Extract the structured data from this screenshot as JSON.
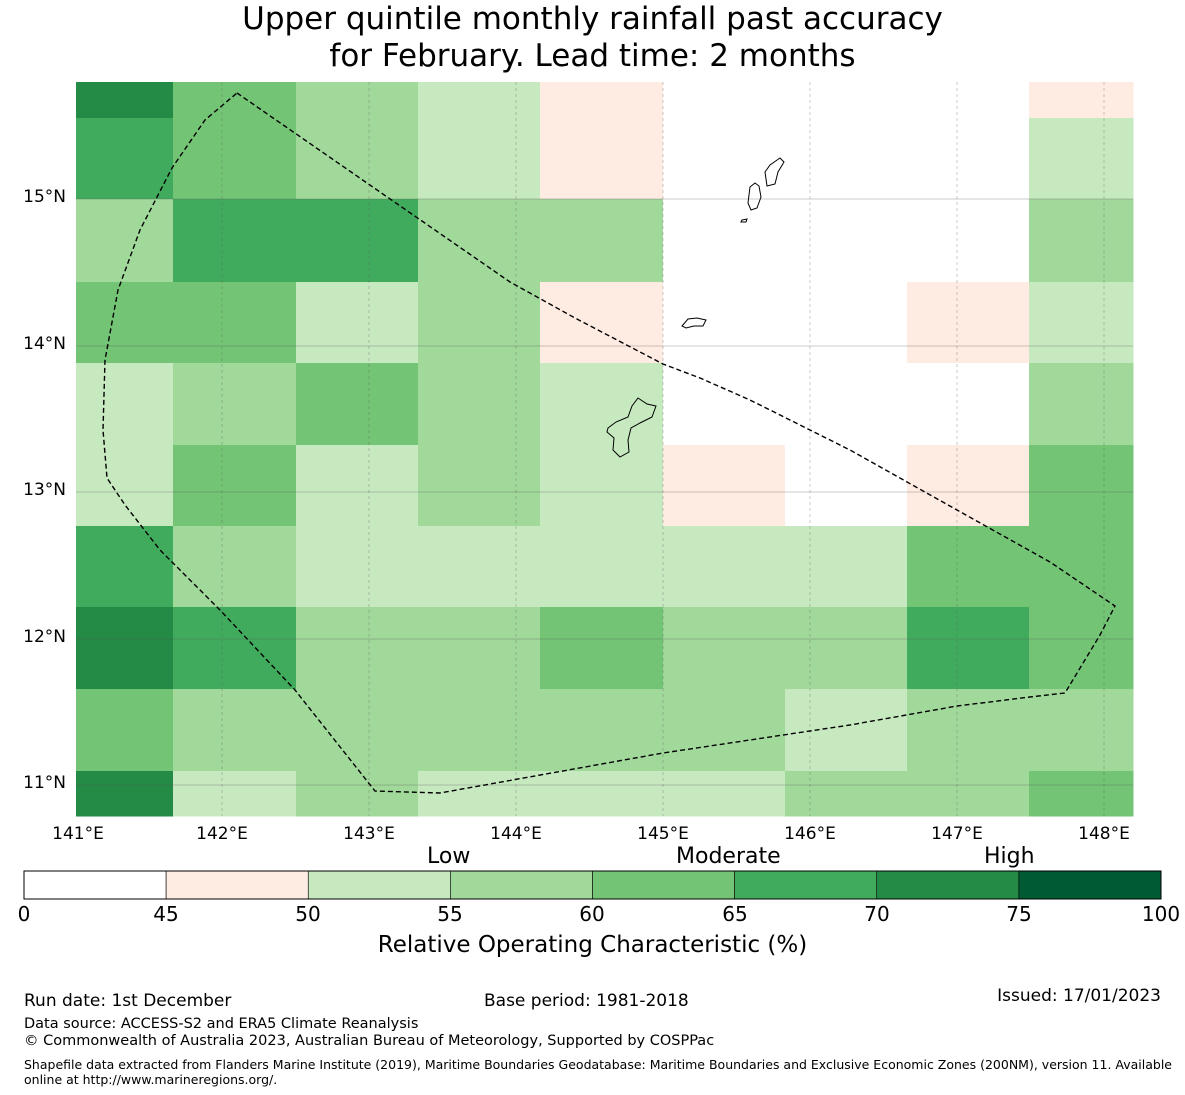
{
  "title": {
    "line1": "Upper quintile monthly rainfall past accuracy",
    "line2": "for February. Lead time: 2 months"
  },
  "map": {
    "lat_labels": [
      "15°N",
      "14°N",
      "13°N",
      "12°N",
      "11°N"
    ],
    "lon_labels": [
      "141°E",
      "142°E",
      "143°E",
      "144°E",
      "145°E",
      "146°E",
      "147°E",
      "148°E"
    ],
    "colors": {
      "c0": "#ffffff",
      "c45": "#feebe2",
      "c50": "#c7e9c0",
      "c55": "#a1d99b",
      "c60": "#74c476",
      "c65": "#41ab5d",
      "c70": "#238b45",
      "c75": "#005a32"
    },
    "grid_values": [
      [
        72,
        62,
        57,
        52,
        47,
        0,
        0,
        0,
        47
      ],
      [
        67,
        62,
        57,
        52,
        47,
        0,
        0,
        0,
        52
      ],
      [
        57,
        67,
        67,
        57,
        57,
        0,
        0,
        0,
        57
      ],
      [
        62,
        62,
        52,
        57,
        47,
        0,
        0,
        47,
        52
      ],
      [
        52,
        57,
        62,
        57,
        52,
        0,
        0,
        0,
        57
      ],
      [
        52,
        62,
        52,
        57,
        52,
        47,
        0,
        47,
        62
      ],
      [
        67,
        57,
        52,
        52,
        52,
        52,
        52,
        62,
        62
      ],
      [
        72,
        67,
        57,
        57,
        62,
        57,
        57,
        67,
        62
      ],
      [
        62,
        57,
        57,
        57,
        57,
        57,
        52,
        57,
        57
      ],
      [
        72,
        52,
        57,
        52,
        52,
        52,
        57,
        57,
        62
      ]
    ]
  },
  "legend": {
    "categories": [
      "Low",
      "Moderate",
      "High"
    ],
    "ticks": [
      "0",
      "45",
      "50",
      "55",
      "60",
      "65",
      "70",
      "75",
      "100"
    ],
    "label": "Relative Operating Characteristic (%)"
  },
  "footer": {
    "run_date": "Run date: 1st December",
    "base_period": "Base period: 1981-2018",
    "issued": "Issued: 17/01/2023",
    "data_source": "Data source: ACCESS-S2 and ERA5 Climate Reanalysis",
    "copyright": "© Commonwealth of Australia 2023, Australian Bureau of Meteorology, Supported by COSPPac",
    "shapefile": "Shapefile data extracted from Flanders Marine Institute (2019), Maritime Boundaries Geodatabase: Maritime Boundaries and Exclusive Economic Zones (200NM), version 11. Available online at http://www.marineregions.org/."
  }
}
